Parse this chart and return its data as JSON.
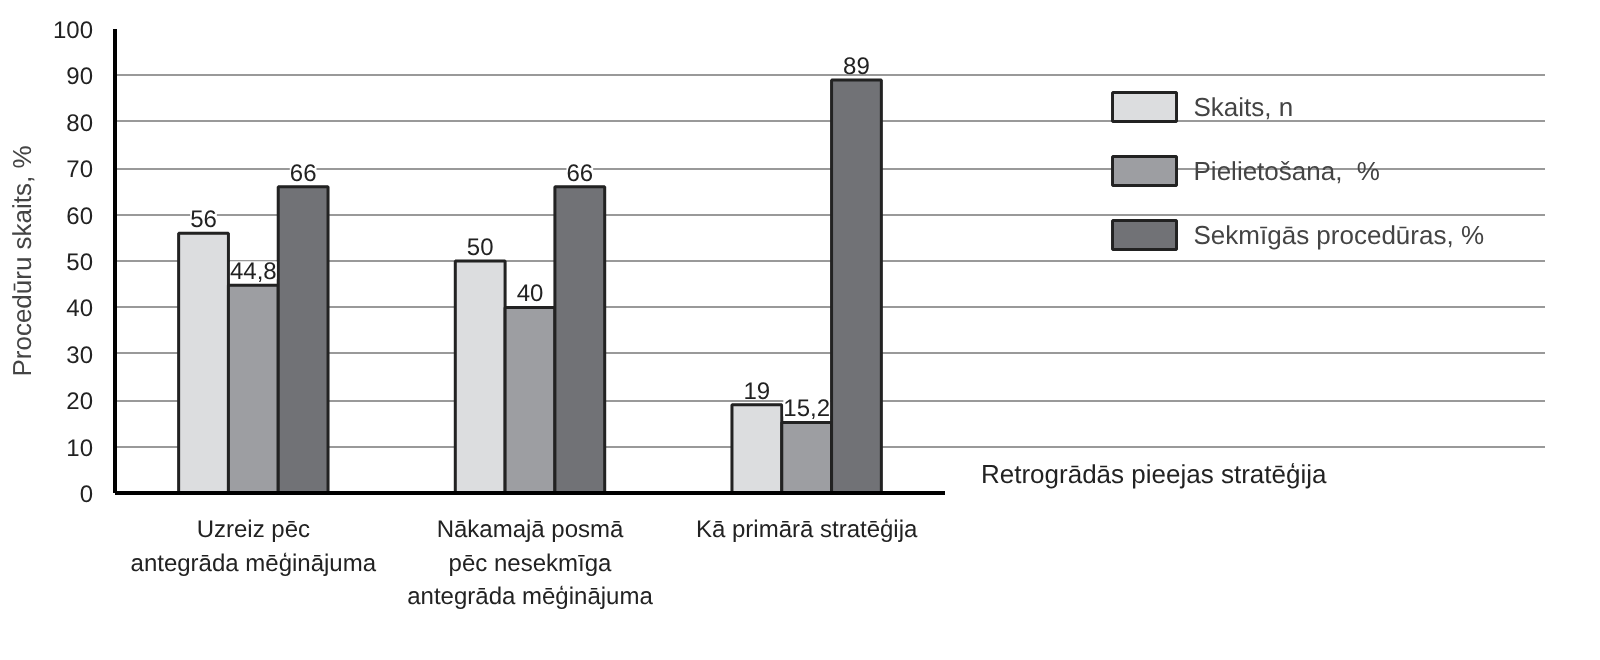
{
  "chart_data": {
    "type": "bar",
    "categories": [
      "Uzreiz pēc\nantegrāda mēģinājuma",
      "Nākamajā posmā\npēc nesekmīga\nantegrāda mēģinājuma",
      "Kā primārā stratēģija"
    ],
    "series": [
      {
        "name": "Skaits, n",
        "color": "#dcdddf",
        "values": [
          56,
          50,
          19
        ],
        "value_labels": [
          "56",
          "50",
          "19"
        ]
      },
      {
        "name": "Pielietošana,  %",
        "color": "#9d9ea2",
        "values": [
          44.8,
          40,
          15.2
        ],
        "value_labels": [
          "44,8",
          "40",
          "15,2"
        ]
      },
      {
        "name": "Sekmīgās procedūras, %",
        "color": "#717276",
        "values": [
          66,
          66,
          89
        ],
        "value_labels": [
          "66",
          "66",
          "89"
        ]
      }
    ],
    "ylabel": "Procedūru skaits, %",
    "xlabel": "Retrogrādās pieejas stratēģija",
    "ylim": [
      0,
      100
    ],
    "yticks": [
      0,
      10,
      20,
      30,
      40,
      50,
      60,
      70,
      80,
      90,
      100
    ],
    "grid": "y",
    "legend": "right"
  }
}
